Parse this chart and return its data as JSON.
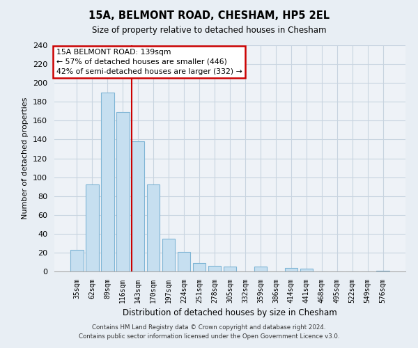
{
  "title": "15A, BELMONT ROAD, CHESHAM, HP5 2EL",
  "subtitle": "Size of property relative to detached houses in Chesham",
  "xlabel": "Distribution of detached houses by size in Chesham",
  "ylabel": "Number of detached properties",
  "bar_labels": [
    "35sqm",
    "62sqm",
    "89sqm",
    "116sqm",
    "143sqm",
    "170sqm",
    "197sqm",
    "224sqm",
    "251sqm",
    "278sqm",
    "305sqm",
    "332sqm",
    "359sqm",
    "386sqm",
    "414sqm",
    "441sqm",
    "468sqm",
    "495sqm",
    "522sqm",
    "549sqm",
    "576sqm"
  ],
  "bar_values": [
    23,
    92,
    190,
    169,
    138,
    92,
    35,
    21,
    9,
    6,
    5,
    0,
    5,
    0,
    4,
    3,
    0,
    0,
    0,
    0,
    1
  ],
  "bar_color": "#c6dff0",
  "bar_edge_color": "#7fb5d5",
  "vline_color": "#cc0000",
  "ylim": [
    0,
    240
  ],
  "yticks": [
    0,
    20,
    40,
    60,
    80,
    100,
    120,
    140,
    160,
    180,
    200,
    220,
    240
  ],
  "annotation_title": "15A BELMONT ROAD: 139sqm",
  "annotation_line1": "← 57% of detached houses are smaller (446)",
  "annotation_line2": "42% of semi-detached houses are larger (332) →",
  "annotation_box_color": "#ffffff",
  "annotation_box_edge": "#cc0000",
  "footer_line1": "Contains HM Land Registry data © Crown copyright and database right 2024.",
  "footer_line2": "Contains public sector information licensed under the Open Government Licence v3.0.",
  "background_color": "#e8eef4",
  "plot_bg_color": "#eef2f7",
  "grid_color": "#c8d4e0"
}
